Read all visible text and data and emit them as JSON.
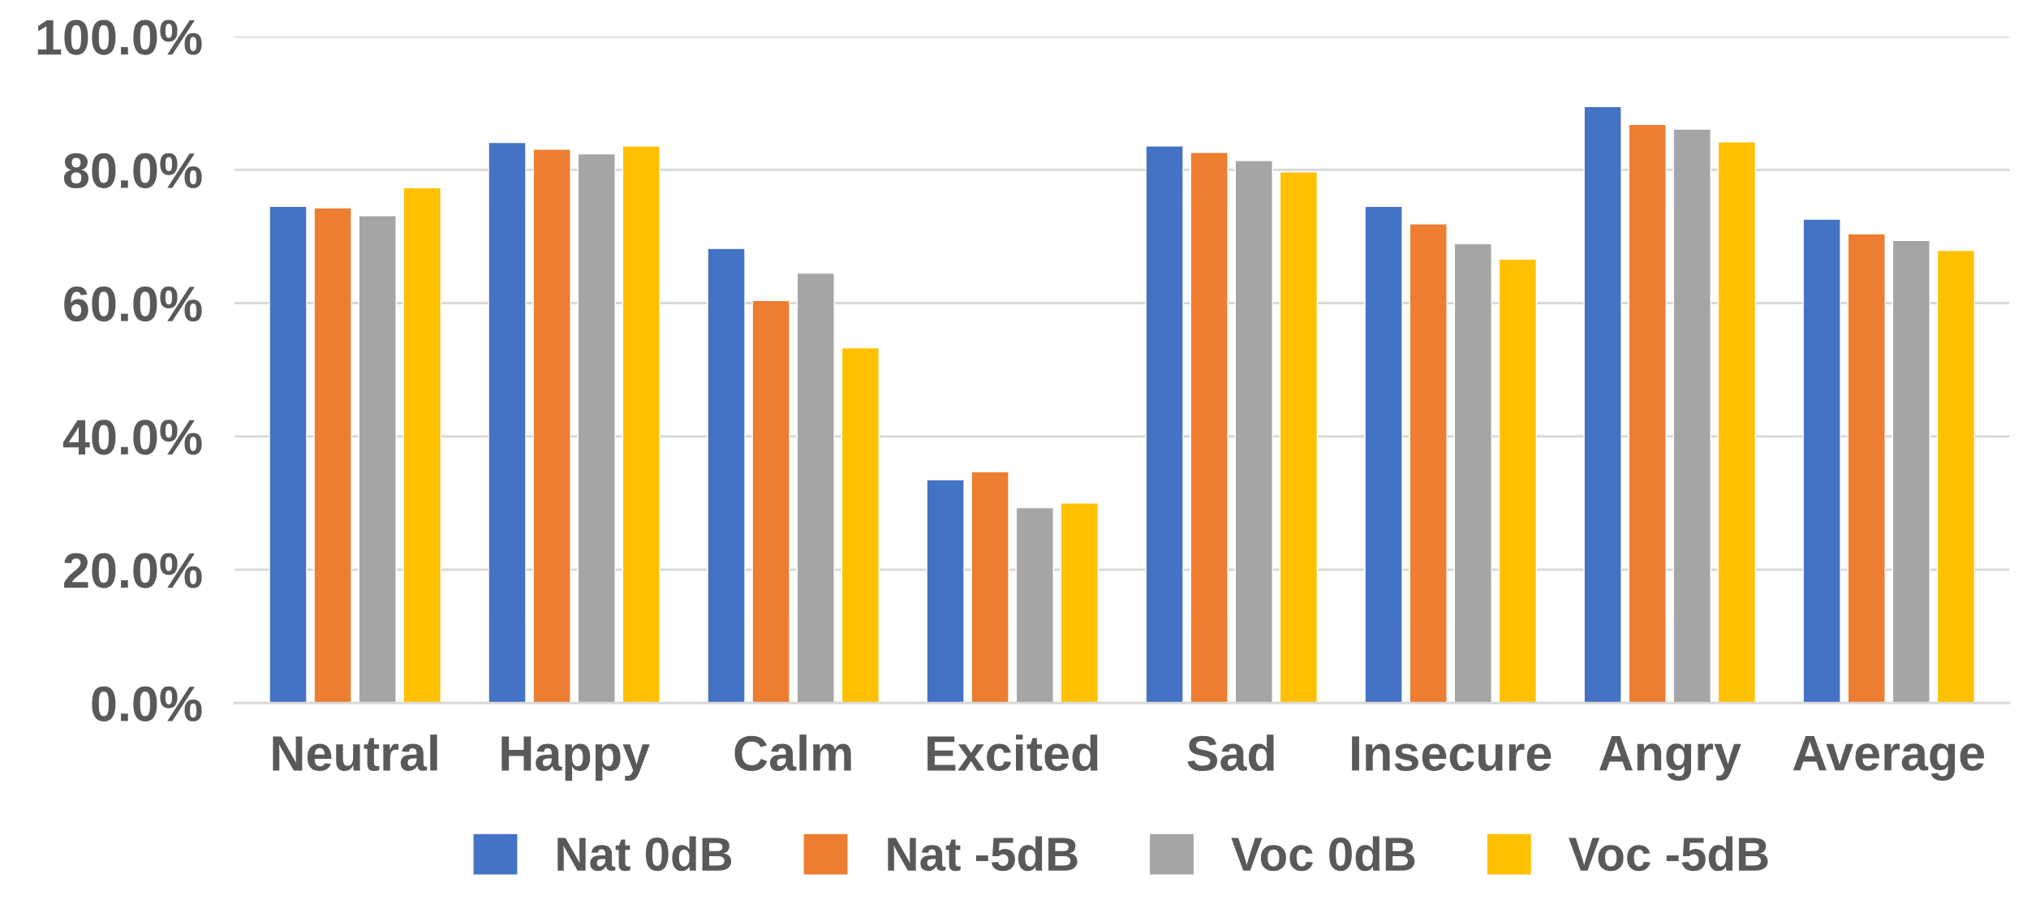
{
  "chart_data": {
    "type": "bar",
    "categories": [
      "Neutral",
      "Happy",
      "Calm",
      "Excited",
      "Sad",
      "Insecure",
      "Angry",
      "Average"
    ],
    "series": [
      {
        "name": "Nat 0dB",
        "color": "#4472c4",
        "values": [
          74.5,
          84.1,
          68.2,
          33.5,
          83.6,
          74.5,
          89.5,
          72.6
        ]
      },
      {
        "name": "Nat -5dB",
        "color": "#ed7d31",
        "values": [
          74.3,
          83.1,
          60.4,
          34.7,
          82.6,
          71.9,
          86.8,
          70.4
        ]
      },
      {
        "name": "Voc 0dB",
        "color": "#a5a5a5",
        "values": [
          73.1,
          82.4,
          64.5,
          29.3,
          81.4,
          68.9,
          86.1,
          69.4
        ]
      },
      {
        "name": "Voc -5dB",
        "color": "#ffc000",
        "values": [
          77.3,
          83.6,
          53.3,
          30.0,
          79.7,
          66.6,
          84.2,
          67.9
        ]
      }
    ],
    "ylim": [
      0,
      100
    ],
    "yticks": [
      {
        "value": 0,
        "label": "0.0%"
      },
      {
        "value": 20,
        "label": "20.0%"
      },
      {
        "value": 40,
        "label": "40.0%"
      },
      {
        "value": 60,
        "label": "60.0%"
      },
      {
        "value": 80,
        "label": "80.0%"
      },
      {
        "value": 100,
        "label": "100.0%"
      }
    ],
    "grid": "y",
    "legend": "bottom"
  }
}
